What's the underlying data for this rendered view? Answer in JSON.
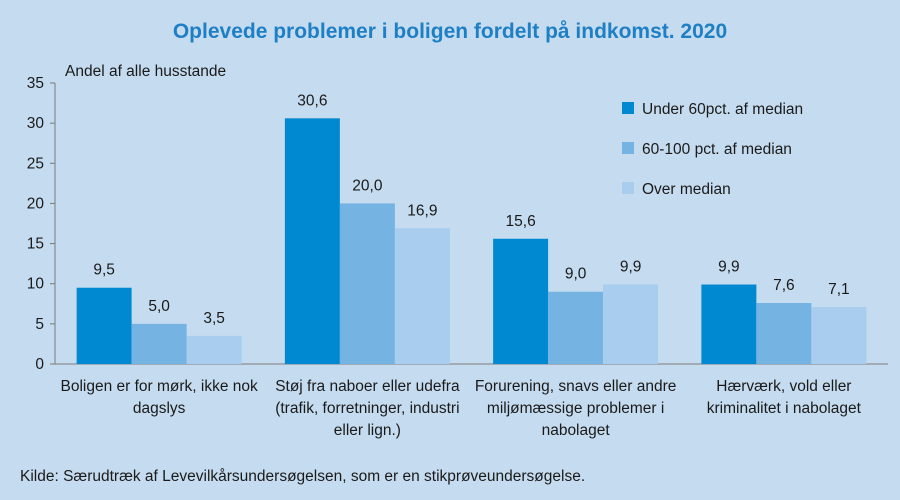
{
  "title": "Oplevede problemer i boligen fordelt på indkomst. 2020",
  "source": "Kilde: Særudtræk af Levevilkårsundersøgelsen, som er en stikprøveundersøgelse.",
  "colors": {
    "background": "#c5dcf0",
    "title": "#1f7fc4",
    "series": [
      "#0089d0",
      "#74b3e2",
      "#a8cdee"
    ],
    "axis": "#7a7a7a"
  },
  "chart_data": {
    "type": "bar",
    "ylabel": "Andel af alle husstande",
    "ylim": [
      0,
      35
    ],
    "yticks": [
      0,
      5,
      10,
      15,
      20,
      25,
      30,
      35
    ],
    "grid": false,
    "legend_position": "top-right",
    "categories": [
      [
        "Boligen er for mørk, ikke nok",
        "dagslys"
      ],
      [
        "Støj fra naboer eller udefra",
        "(trafik, forretninger, industri",
        "eller lign.)"
      ],
      [
        "Forurening, snavs eller andre",
        "miljømæssige problemer i",
        "nabolaget"
      ],
      [
        "Hærværk, vold eller",
        "kriminalitet i nabolaget"
      ]
    ],
    "series": [
      {
        "name": "Under 60pct. af median",
        "values": [
          9.5,
          30.6,
          15.6,
          9.9
        ],
        "labels": [
          "9,5",
          "30,6",
          "15,6",
          "9,9"
        ]
      },
      {
        "name": "60-100 pct. af median",
        "values": [
          5.0,
          20.0,
          9.0,
          7.6
        ],
        "labels": [
          "5,0",
          "20,0",
          "9,0",
          "7,6"
        ]
      },
      {
        "name": "Over median",
        "values": [
          3.5,
          16.9,
          9.9,
          7.1
        ],
        "labels": [
          "3,5",
          "16,9",
          "9,9",
          "7,1"
        ]
      }
    ]
  }
}
